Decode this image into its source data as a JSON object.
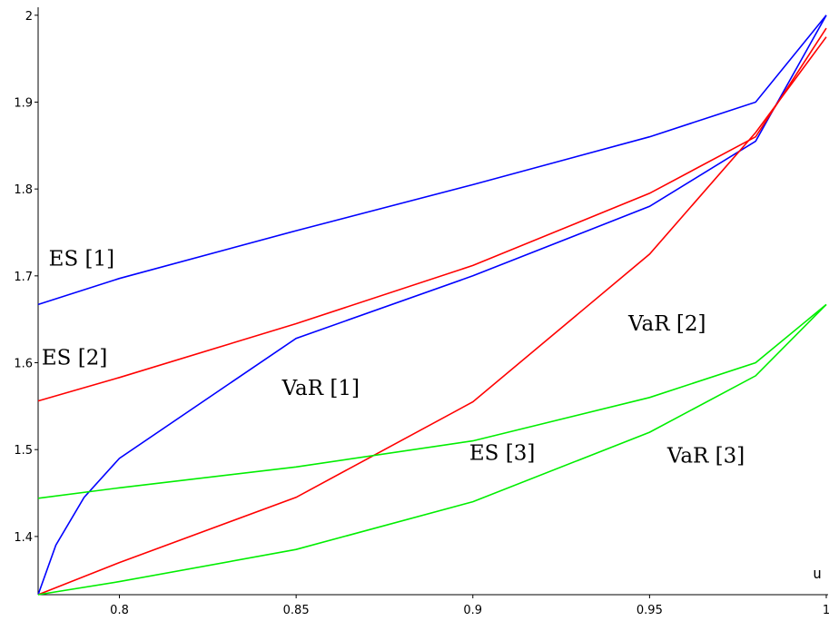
{
  "chart_data": {
    "type": "line",
    "title": "",
    "xlabel": "u",
    "ylabel": "",
    "xlim": [
      0.777,
      1.0
    ],
    "ylim": [
      1.333,
      2.005
    ],
    "x_ticks": [
      {
        "value": 0.8,
        "label": "0.8"
      },
      {
        "value": 0.85,
        "label": "0.85"
      },
      {
        "value": 0.9,
        "label": "0.9"
      },
      {
        "value": 0.95,
        "label": "0.95"
      },
      {
        "value": 1.0,
        "label": "1"
      }
    ],
    "y_ticks": [
      {
        "value": 1.4,
        "label": "1.4"
      },
      {
        "value": 1.5,
        "label": "1.5"
      },
      {
        "value": 1.6,
        "label": "1.6"
      },
      {
        "value": 1.7,
        "label": "1.7"
      },
      {
        "value": 1.8,
        "label": "1.8"
      },
      {
        "value": 1.9,
        "label": "1.9"
      },
      {
        "value": 2.0,
        "label": "2"
      }
    ],
    "grid": false,
    "series": [
      {
        "name": "ES [1]",
        "color": "#0000ff",
        "label_at": [
          0.78,
          1.712
        ],
        "x": [
          0.777,
          0.8,
          0.85,
          0.9,
          0.95,
          0.98,
          1.0
        ],
        "y": [
          1.667,
          1.697,
          1.752,
          1.805,
          1.86,
          1.9,
          2.0
        ]
      },
      {
        "name": "VaR [1]",
        "color": "#0000ff",
        "label_at": [
          0.846,
          1.563
        ],
        "x": [
          0.777,
          0.782,
          0.79,
          0.8,
          0.85,
          0.9,
          0.95,
          0.98,
          1.0
        ],
        "y": [
          1.333,
          1.39,
          1.445,
          1.49,
          1.628,
          1.7,
          1.78,
          1.855,
          2.0
        ]
      },
      {
        "name": "ES [2]",
        "color": "#ff0000",
        "label_at": [
          0.778,
          1.598
        ],
        "x": [
          0.777,
          0.8,
          0.85,
          0.9,
          0.95,
          0.98,
          1.0
        ],
        "y": [
          1.556,
          1.583,
          1.645,
          1.712,
          1.795,
          1.86,
          1.985
        ]
      },
      {
        "name": "VaR [2]",
        "color": "#ff0000",
        "label_at": [
          0.944,
          1.637
        ],
        "x": [
          0.777,
          0.8,
          0.85,
          0.9,
          0.95,
          0.98,
          1.0
        ],
        "y": [
          1.333,
          1.37,
          1.445,
          1.555,
          1.725,
          1.865,
          1.975
        ]
      },
      {
        "name": "ES [3]",
        "color": "#00ee00",
        "label_at": [
          0.899,
          1.488
        ],
        "x": [
          0.777,
          0.8,
          0.85,
          0.9,
          0.95,
          0.98,
          1.0
        ],
        "y": [
          1.444,
          1.456,
          1.48,
          1.51,
          1.56,
          1.6,
          1.667
        ]
      },
      {
        "name": "VaR [3]",
        "color": "#00ee00",
        "label_at": [
          0.955,
          1.485
        ],
        "x": [
          0.777,
          0.8,
          0.85,
          0.9,
          0.95,
          0.98,
          1.0
        ],
        "y": [
          1.333,
          1.348,
          1.385,
          1.44,
          1.52,
          1.585,
          1.667
        ]
      }
    ]
  }
}
